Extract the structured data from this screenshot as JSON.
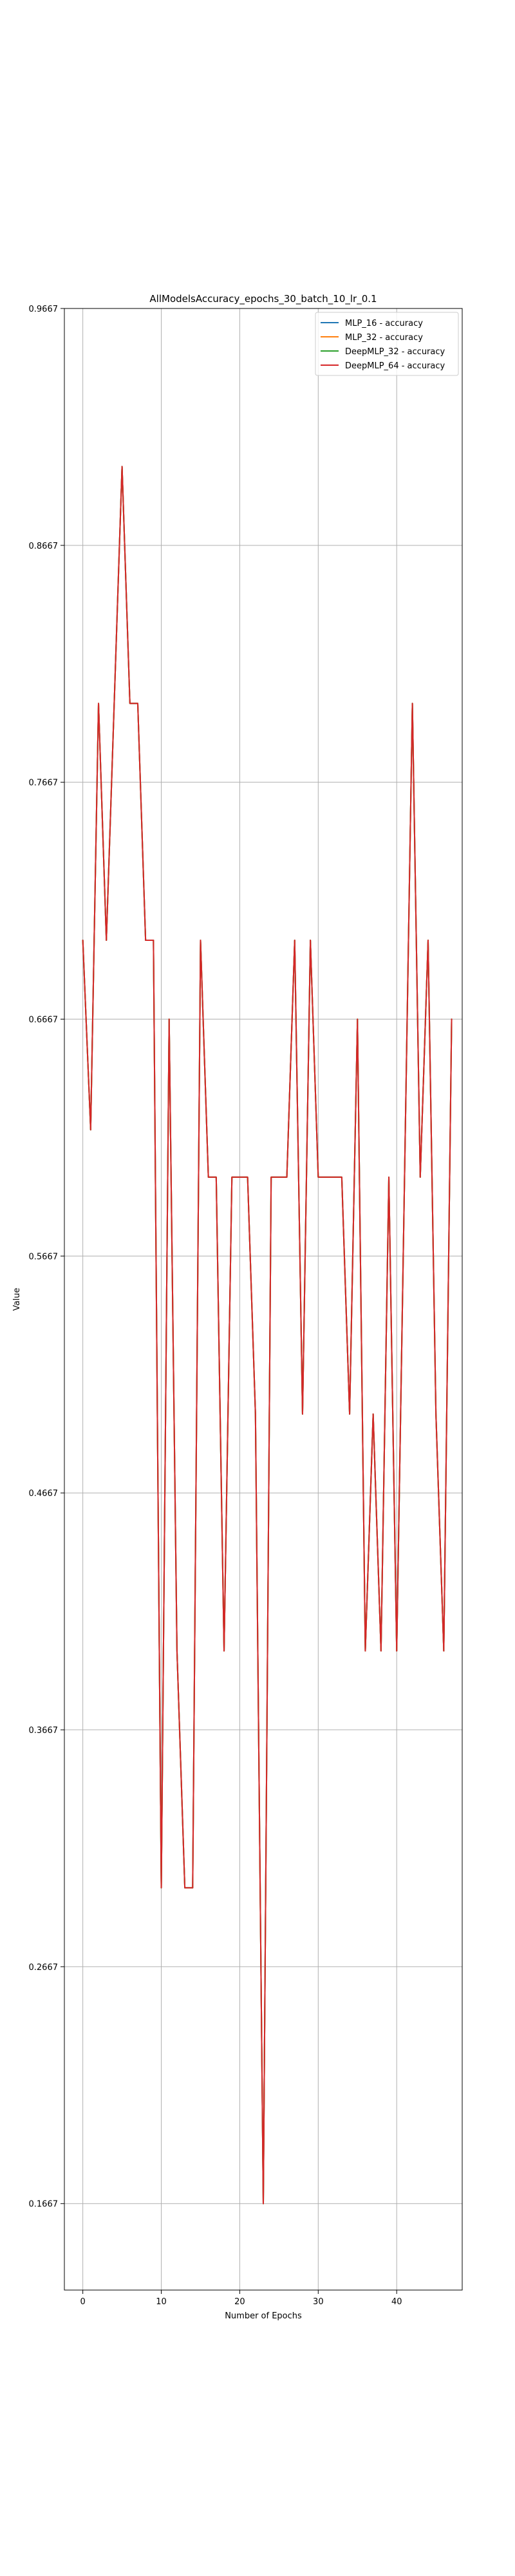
{
  "chart_data": {
    "type": "line",
    "title": "AllModelsAccuracy_epochs_30_batch_10_lr_0.1",
    "xlabel": "Number of Epochs",
    "ylabel": "Value",
    "xlim": [
      -2.35,
      48.35
    ],
    "ylim": [
      0.1302,
      0.9667
    ],
    "xticks": [
      0,
      10,
      20,
      30,
      40
    ],
    "yticks": [
      0.1667,
      0.2667,
      0.3667,
      0.4667,
      0.5667,
      0.6667,
      0.7667,
      0.8667,
      0.9667
    ],
    "ytick_labels": [
      "0.1667",
      "0.2667",
      "0.3667",
      "0.4667",
      "0.5667",
      "0.6667",
      "0.7667",
      "0.8667",
      "0.9667"
    ],
    "grid": true,
    "legend_position": "top-right",
    "x": [
      0,
      1,
      2,
      3,
      4,
      5,
      6,
      7,
      8,
      9,
      10,
      11,
      12,
      13,
      14,
      15,
      16,
      17,
      18,
      19,
      20,
      21,
      22,
      23,
      24,
      25,
      26,
      27,
      28,
      29,
      30,
      31,
      32,
      33,
      34,
      35,
      36,
      37,
      38,
      39,
      40,
      41,
      42,
      43,
      44,
      45,
      46,
      47
    ],
    "series": [
      {
        "name": "MLP_16 - accuracy",
        "color": "#1f77b4",
        "values": [
          0.7,
          0.62,
          0.8,
          0.7,
          0.8,
          0.9,
          0.8,
          0.8,
          0.7,
          0.7,
          0.3,
          0.6667,
          0.4,
          0.3,
          0.3,
          0.7,
          0.6,
          0.6,
          0.4,
          0.6,
          0.6,
          0.6,
          0.5,
          0.1667,
          0.6,
          0.6,
          0.6,
          0.7,
          0.5,
          0.7,
          0.6,
          0.6,
          0.6,
          0.6,
          0.5,
          0.6667,
          0.4,
          0.5,
          0.4,
          0.6,
          0.4,
          0.6,
          0.8,
          0.6,
          0.7,
          0.5,
          0.4,
          0.6667
        ]
      },
      {
        "name": "MLP_32 - accuracy",
        "color": "#ff7f0e",
        "values": [
          0.7,
          0.62,
          0.8,
          0.7,
          0.8,
          0.9,
          0.8,
          0.8,
          0.7,
          0.7,
          0.3,
          0.6667,
          0.4,
          0.3,
          0.3,
          0.7,
          0.6,
          0.6,
          0.4,
          0.6,
          0.6,
          0.6,
          0.5,
          0.1667,
          0.6,
          0.6,
          0.6,
          0.7,
          0.5,
          0.7,
          0.6,
          0.6,
          0.6,
          0.6,
          0.5,
          0.6667,
          0.4,
          0.5,
          0.4,
          0.6,
          0.4,
          0.6,
          0.8,
          0.6,
          0.7,
          0.5,
          0.4,
          0.6667
        ]
      },
      {
        "name": "DeepMLP_32 - accuracy",
        "color": "#2ca02c",
        "values": [
          0.7,
          0.62,
          0.8,
          0.7,
          0.8,
          0.9,
          0.8,
          0.8,
          0.7,
          0.7,
          0.3,
          0.6667,
          0.4,
          0.3,
          0.3,
          0.7,
          0.6,
          0.6,
          0.4,
          0.6,
          0.6,
          0.6,
          0.5,
          0.1667,
          0.6,
          0.6,
          0.6,
          0.7,
          0.5,
          0.7,
          0.6,
          0.6,
          0.6,
          0.6,
          0.5,
          0.6667,
          0.4,
          0.5,
          0.4,
          0.6,
          0.4,
          0.6,
          0.8,
          0.6,
          0.7,
          0.5,
          0.4,
          0.6667
        ]
      },
      {
        "name": "DeepMLP_64 - accuracy",
        "color": "#d62728",
        "values": [
          0.7,
          0.62,
          0.8,
          0.7,
          0.8,
          0.9,
          0.8,
          0.8,
          0.7,
          0.7,
          0.3,
          0.6667,
          0.4,
          0.3,
          0.3,
          0.7,
          0.6,
          0.6,
          0.4,
          0.6,
          0.6,
          0.6,
          0.5,
          0.1667,
          0.6,
          0.6,
          0.6,
          0.7,
          0.5,
          0.7,
          0.6,
          0.6,
          0.6,
          0.6,
          0.5,
          0.6667,
          0.4,
          0.5,
          0.4,
          0.6,
          0.4,
          0.6,
          0.8,
          0.6,
          0.7,
          0.5,
          0.4,
          0.6667
        ]
      }
    ]
  }
}
